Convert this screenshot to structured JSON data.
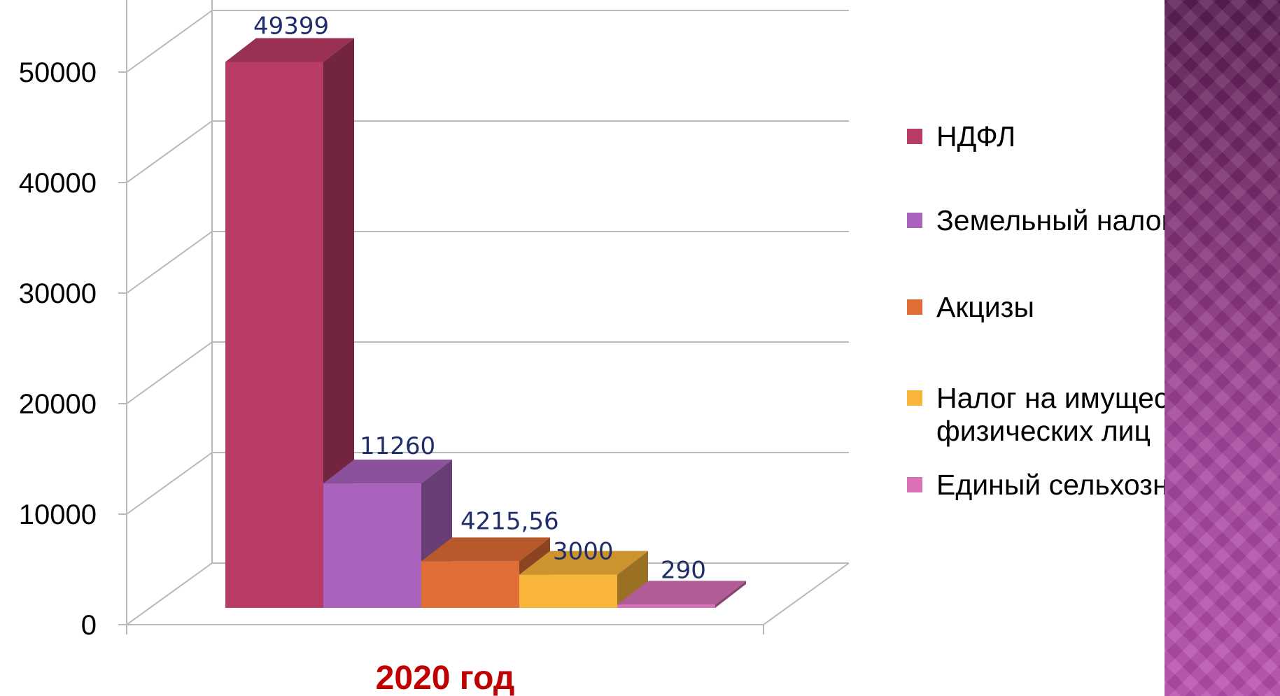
{
  "chart_data": {
    "type": "bar",
    "categories": [
      "2020 год"
    ],
    "series": [
      {
        "name": "НДФЛ",
        "value": 49399,
        "label": "49399",
        "color": "#b93c66"
      },
      {
        "name": "Земельный налог",
        "value": 11260,
        "label": "11260",
        "color": "#a963bd"
      },
      {
        "name": "Акцизы",
        "value": 4215.56,
        "label": "4215,56",
        "color": "#e06c36"
      },
      {
        "name": "Налог на имущество физических лиц",
        "value": 3000,
        "label": "3000",
        "color": "#f9b539"
      },
      {
        "name": "Единый сельхозналог",
        "value": 290,
        "label": "290",
        "color": "#d970b8"
      }
    ],
    "ylim": [
      0,
      60000
    ],
    "yticks": [
      "0",
      "10000",
      "20000",
      "30000",
      "40000",
      "50000"
    ],
    "grid": true,
    "legend_position": "right",
    "three_d": true
  },
  "colors": {
    "gridline": "#b8b8b8",
    "data_label": "#1f2d6b",
    "category_label": "#c00000",
    "side_panel": "#9a3f95"
  }
}
